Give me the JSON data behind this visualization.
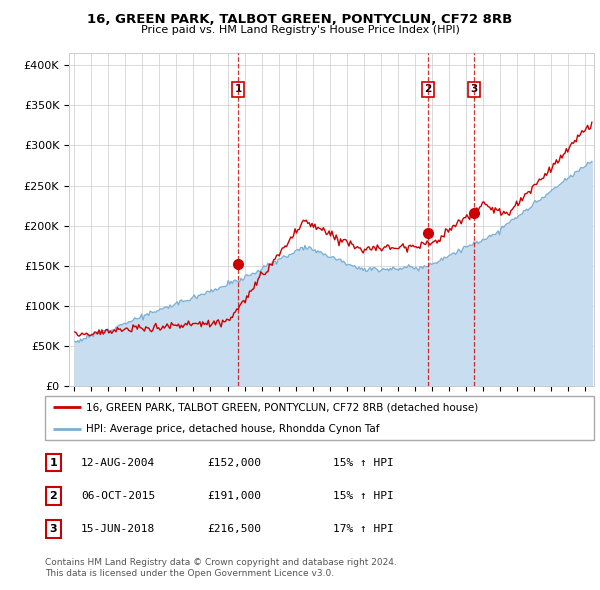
{
  "title": "16, GREEN PARK, TALBOT GREEN, PONTYCLUN, CF72 8RB",
  "subtitle": "Price paid vs. HM Land Registry's House Price Index (HPI)",
  "ylabel_ticks": [
    "£0",
    "£50K",
    "£100K",
    "£150K",
    "£200K",
    "£250K",
    "£300K",
    "£350K",
    "£400K"
  ],
  "ytick_values": [
    0,
    50000,
    100000,
    150000,
    200000,
    250000,
    300000,
    350000,
    400000
  ],
  "ylim": [
    0,
    415000
  ],
  "xlim_start": 1994.7,
  "xlim_end": 2025.5,
  "red_line_color": "#cc0000",
  "blue_line_color": "#7bafd4",
  "blue_fill_color": "#c8ddf0",
  "marker_color": "#cc0000",
  "sale_dates": [
    2004.617,
    2015.758,
    2018.456
  ],
  "sale_prices": [
    152000,
    191000,
    216500
  ],
  "sale_labels": [
    "1",
    "2",
    "3"
  ],
  "vline_color": "#cc0000",
  "legend_red_label": "16, GREEN PARK, TALBOT GREEN, PONTYCLUN, CF72 8RB (detached house)",
  "legend_blue_label": "HPI: Average price, detached house, Rhondda Cynon Taf",
  "table_rows": [
    {
      "num": "1",
      "date": "12-AUG-2004",
      "price": "£152,000",
      "pct": "15% ↑ HPI"
    },
    {
      "num": "2",
      "date": "06-OCT-2015",
      "price": "£191,000",
      "pct": "15% ↑ HPI"
    },
    {
      "num": "3",
      "date": "15-JUN-2018",
      "price": "£216,500",
      "pct": "17% ↑ HPI"
    }
  ],
  "footnote1": "Contains HM Land Registry data © Crown copyright and database right 2024.",
  "footnote2": "This data is licensed under the Open Government Licence v3.0.",
  "background_color": "#ffffff",
  "grid_color": "#cccccc"
}
